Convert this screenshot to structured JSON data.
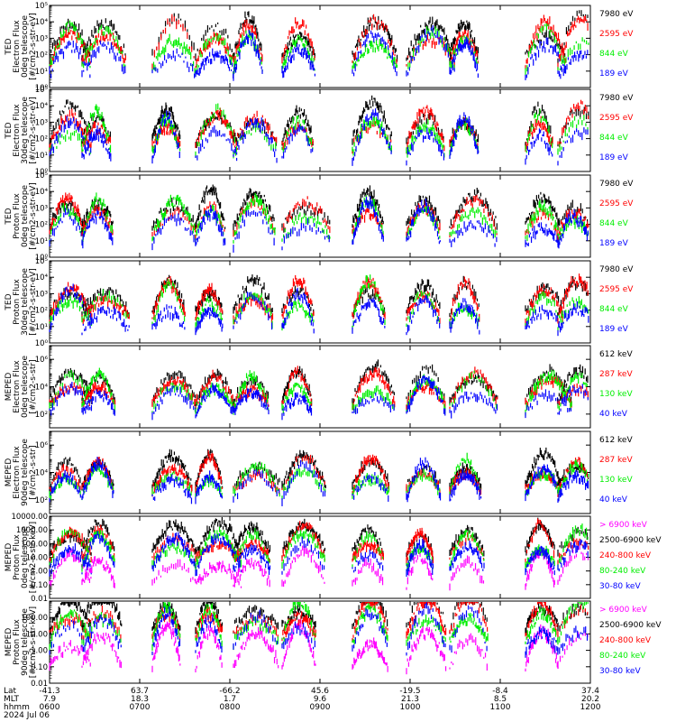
{
  "colors": {
    "black": "#000000",
    "red": "#ff0000",
    "green": "#00ee00",
    "blue": "#0000ff",
    "magenta": "#ff00ff"
  },
  "chart_data": [
    {
      "type": "scatter",
      "panel": 1,
      "ylabel_lines": [
        "TED",
        "Electron Flux",
        "0deg telescope",
        "[#/cm2-s-str-eV]"
      ],
      "yscale": "log",
      "ylim_exp": [
        0,
        5
      ],
      "yticks": [
        "10⁰",
        "10¹",
        "10²",
        "10³",
        "10⁴",
        "10⁵"
      ],
      "legend": [
        {
          "label": "7980 eV",
          "color": "#000000"
        },
        {
          "label": "2595 eV",
          "color": "#ff0000"
        },
        {
          "label": "844 eV",
          "color": "#00ee00"
        },
        {
          "label": "189 eV",
          "color": "#0000ff"
        }
      ]
    },
    {
      "type": "scatter",
      "panel": 2,
      "ylabel_lines": [
        "TED",
        "Electron Flux",
        "30deg telescope",
        "[#/cm2-s-str-eV]"
      ],
      "yscale": "log",
      "ylim_exp": [
        0,
        5
      ],
      "yticks": [
        "10⁰",
        "10¹",
        "10²",
        "10³",
        "10⁴",
        "10⁵"
      ],
      "legend": [
        {
          "label": "7980 eV",
          "color": "#000000"
        },
        {
          "label": "2595 eV",
          "color": "#ff0000"
        },
        {
          "label": "844 eV",
          "color": "#00ee00"
        },
        {
          "label": "189 eV",
          "color": "#0000ff"
        }
      ]
    },
    {
      "type": "scatter",
      "panel": 3,
      "ylabel_lines": [
        "TED",
        "Proton Flux",
        "0deg telescope",
        "[#/cm2-s-str-eV]"
      ],
      "yscale": "log",
      "ylim_exp": [
        0,
        5
      ],
      "yticks": [
        "10⁰",
        "10¹",
        "10²",
        "10³",
        "10⁴",
        "10⁵"
      ],
      "legend": [
        {
          "label": "7980 eV",
          "color": "#000000"
        },
        {
          "label": "2595 eV",
          "color": "#ff0000"
        },
        {
          "label": "844 eV",
          "color": "#00ee00"
        },
        {
          "label": "189 eV",
          "color": "#0000ff"
        }
      ]
    },
    {
      "type": "scatter",
      "panel": 4,
      "ylabel_lines": [
        "TED",
        "Proton Flux",
        "30deg telescope",
        "[#/cm2-s-str-eV]"
      ],
      "yscale": "log",
      "ylim_exp": [
        0,
        5
      ],
      "yticks": [
        "10⁰",
        "10¹",
        "10²",
        "10³",
        "10⁴",
        "10⁵"
      ],
      "legend": [
        {
          "label": "7980 eV",
          "color": "#000000"
        },
        {
          "label": "2595 eV",
          "color": "#ff0000"
        },
        {
          "label": "844 eV",
          "color": "#00ee00"
        },
        {
          "label": "189 eV",
          "color": "#0000ff"
        }
      ]
    },
    {
      "type": "scatter",
      "panel": 5,
      "ylabel_lines": [
        "MEPED",
        "Electron Flux",
        "0deg telescope",
        "[#/cm2-s-str]"
      ],
      "yscale": "log",
      "ylim_exp": [
        1,
        7
      ],
      "yticks": [
        "10²",
        "10⁴",
        "10⁶"
      ],
      "ytick_exps": [
        2,
        4,
        6
      ],
      "legend": [
        {
          "label": "612 keV",
          "color": "#000000"
        },
        {
          "label": "287 keV",
          "color": "#ff0000"
        },
        {
          "label": "130 keV",
          "color": "#00ee00"
        },
        {
          "label": "40 keV",
          "color": "#0000ff"
        }
      ]
    },
    {
      "type": "scatter",
      "panel": 6,
      "ylabel_lines": [
        "MEPED",
        "Electron Flux",
        "90deg telescope",
        "[#/cm2-s-str]"
      ],
      "yscale": "log",
      "ylim_exp": [
        1,
        7
      ],
      "yticks": [
        "10²",
        "10⁴",
        "10⁶"
      ],
      "ytick_exps": [
        2,
        4,
        6
      ],
      "legend": [
        {
          "label": "612 keV",
          "color": "#000000"
        },
        {
          "label": "287 keV",
          "color": "#ff0000"
        },
        {
          "label": "130 keV",
          "color": "#00ee00"
        },
        {
          "label": "40 keV",
          "color": "#0000ff"
        }
      ]
    },
    {
      "type": "scatter",
      "panel": 7,
      "ylabel_lines": [
        "MEPED",
        "Proton Flux",
        "0deg telescope",
        "[#/cm2-s-str-keV]"
      ],
      "yscale": "log",
      "ylim_exp": [
        -2,
        4
      ],
      "yticks": [
        "0.01",
        "0.10",
        "1.00",
        "10.00",
        "100.00",
        "1000.00",
        "10000.00"
      ],
      "legend": [
        {
          "label": "> 6900 keV",
          "color": "#ff00ff"
        },
        {
          "label": "2500-6900 keV",
          "color": "#000000"
        },
        {
          "label": "240-800 keV",
          "color": "#ff0000"
        },
        {
          "label": "80-240 keV",
          "color": "#00ee00"
        },
        {
          "label": "30-80 keV",
          "color": "#0000ff"
        }
      ]
    },
    {
      "type": "scatter",
      "panel": 8,
      "ylabel_lines": [
        "MEPED",
        "Proton Flux",
        "90deg telescope",
        "[#/cm2-s-str-keV]"
      ],
      "yscale": "log",
      "ylim_exp": [
        -2,
        3
      ],
      "yticks": [
        "0.01",
        "0.10",
        "1.00",
        "10.00",
        "100.00"
      ],
      "legend": [
        {
          "label": "> 6900 keV",
          "color": "#ff00ff"
        },
        {
          "label": "2500-6900 keV",
          "color": "#000000"
        },
        {
          "label": "240-800 keV",
          "color": "#ff0000"
        },
        {
          "label": "80-240 keV",
          "color": "#00ee00"
        },
        {
          "label": "30-80 keV",
          "color": "#0000ff"
        }
      ]
    }
  ],
  "xaxis": {
    "row_labels": [
      "Lat",
      "MLT",
      "hhmm"
    ],
    "date": "2024 Jul 06",
    "ticks": [
      {
        "lat": "-41.3",
        "mlt": "7.9",
        "hhmm": "0600"
      },
      {
        "lat": "63.7",
        "mlt": "18.3",
        "hhmm": "0700"
      },
      {
        "lat": "-66.2",
        "mlt": "1.7",
        "hhmm": "0800"
      },
      {
        "lat": "45.6",
        "mlt": "9.6",
        "hhmm": "0900"
      },
      {
        "lat": "-19.5",
        "mlt": "21.3",
        "hhmm": "1000"
      },
      {
        "lat": "-8.4",
        "mlt": "8.5",
        "hhmm": "1100"
      },
      {
        "lat": "37.4",
        "mlt": "20.2",
        "hhmm": "1200"
      }
    ]
  }
}
